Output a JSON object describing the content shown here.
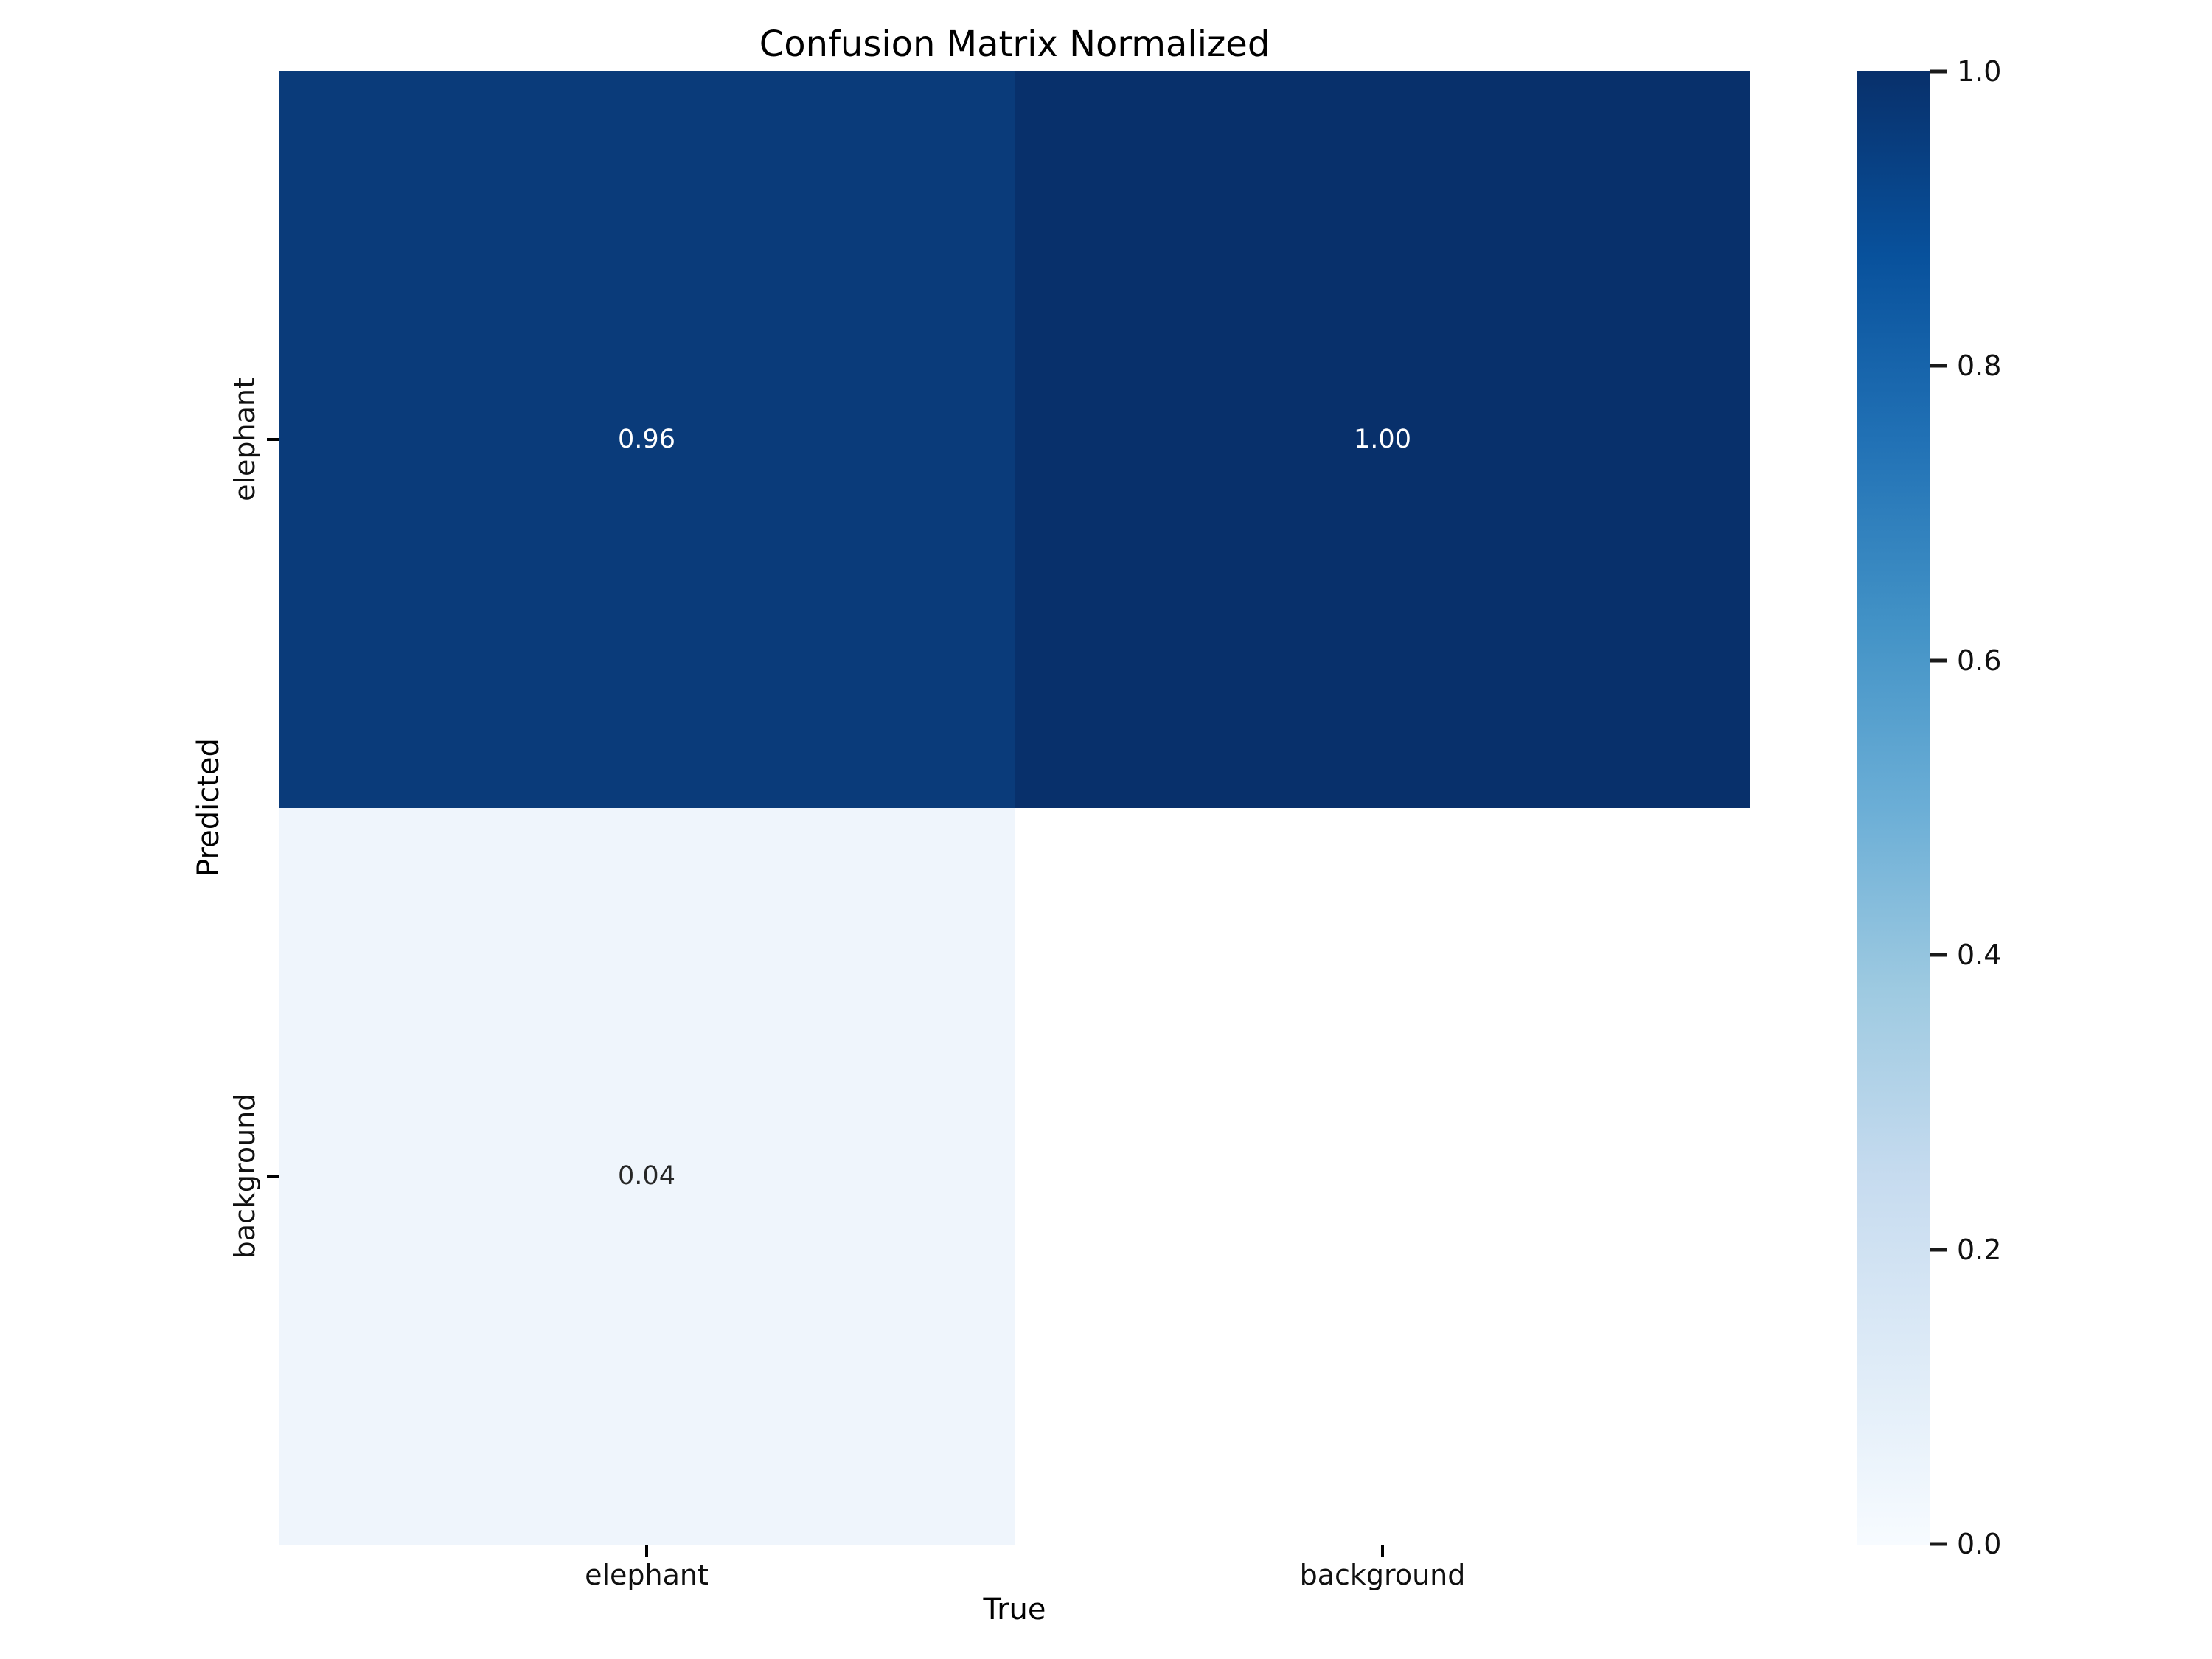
{
  "figure": {
    "title": "Confusion Matrix Normalized",
    "x_axis": {
      "label": "True",
      "ticks": [
        "elephant",
        "background"
      ]
    },
    "y_axis": {
      "label": "Predicted",
      "ticks": [
        "elephant",
        "background"
      ]
    },
    "colorbar": {
      "ticks": [
        "1.0",
        "0.8",
        "0.6",
        "0.4",
        "0.2",
        "0.0"
      ]
    }
  },
  "cells": [
    {
      "row": "elephant",
      "col": "elephant",
      "label": "0.96",
      "bg": "#0a3b7a",
      "fg": "#ffffff"
    },
    {
      "row": "elephant",
      "col": "background",
      "label": "1.00",
      "bg": "#08306b",
      "fg": "#ffffff"
    },
    {
      "row": "background",
      "col": "elephant",
      "label": "0.04",
      "bg": "#eff5fc",
      "fg": "#262626"
    },
    {
      "row": "background",
      "col": "background",
      "label": "",
      "bg": "#ffffff",
      "fg": "#262626"
    }
  ],
  "colors": {
    "background": "#ffffff",
    "title_text": "#000000",
    "tick_text": "#101010",
    "cbar_stops": [
      "#08306b",
      "#08519c",
      "#2171b5",
      "#4292c6",
      "#6baed6",
      "#9ecae1",
      "#c6dbef",
      "#deebf7",
      "#f7fbff"
    ]
  },
  "chart_data": {
    "type": "heatmap",
    "title": "Confusion Matrix Normalized",
    "xlabel": "True",
    "ylabel": "Predicted",
    "x_categories": [
      "elephant",
      "background"
    ],
    "y_categories": [
      "elephant",
      "background"
    ],
    "matrix": [
      [
        0.96,
        1.0
      ],
      [
        0.04,
        null
      ]
    ],
    "cell_annotations": [
      [
        "0.96",
        "1.00"
      ],
      [
        "0.04",
        ""
      ]
    ],
    "colormap": "Blues",
    "vmin": 0.0,
    "vmax": 1.0,
    "colorbar_ticks": [
      1.0,
      0.8,
      0.6,
      0.4,
      0.2,
      0.0
    ],
    "colorbar_position": "right",
    "grid": false,
    "notes": "Bottom-right cell (Predicted=background, True=background) is rendered blank white with no annotation."
  }
}
